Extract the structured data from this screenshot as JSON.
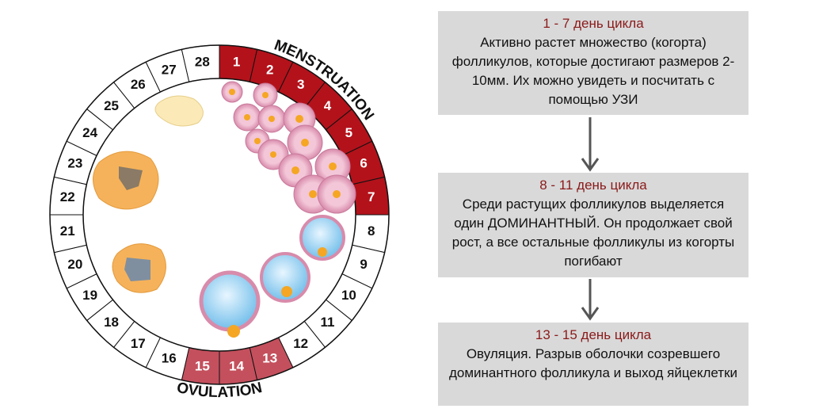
{
  "cycle": {
    "days": [
      1,
      2,
      3,
      4,
      5,
      6,
      7,
      8,
      9,
      10,
      11,
      12,
      13,
      14,
      15,
      16,
      17,
      18,
      19,
      20,
      21,
      22,
      23,
      24,
      25,
      26,
      27,
      28
    ],
    "phases": {
      "menstruation": "MENSTRUATION",
      "ovulation": "OVULATION"
    }
  },
  "steps": [
    {
      "title": "1 - 7 день цикла",
      "text": "Активно растет множество (когорта) фолликулов, которые достигают размеров 2-10мм. Их можно увидеть и посчитать с помощью УЗИ"
    },
    {
      "title": "8 - 11 день цикла",
      "text": "Среди растущих фолликулов выделяется один ДОМИНАНТНЫЙ. Он продолжает свой рост, а все остальные фолликулы из когорты погибают"
    },
    {
      "title": "13 - 15 день цикла",
      "text": "Овуляция. Разрыв оболочки созревшего доминантного фолликула и выход яйцеклетки"
    }
  ]
}
